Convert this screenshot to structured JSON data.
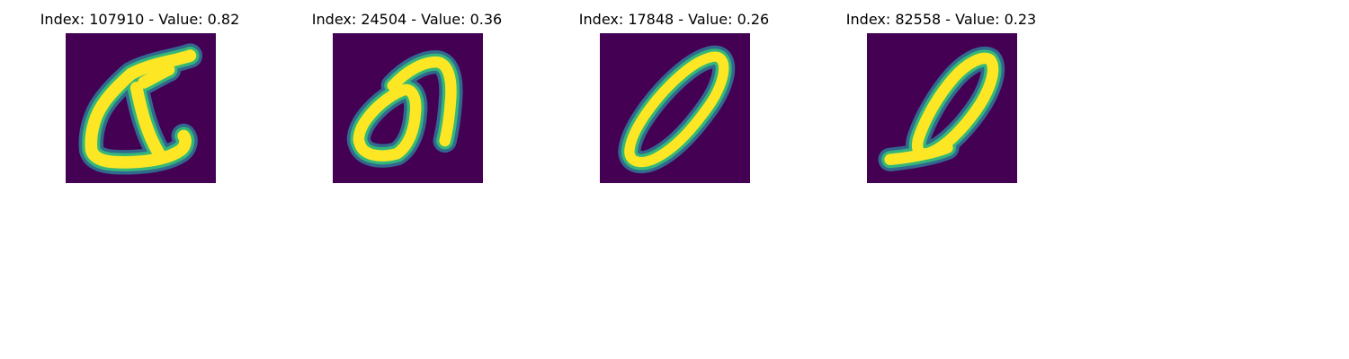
{
  "colors": {
    "background": "#440154",
    "stroke_core": "#fde725",
    "stroke_mid": "#35b779",
    "stroke_edge": "#31688e"
  },
  "panels": [
    {
      "title": "Index: 107910 - Value: 0.82",
      "glyph": "looped-a-shape"
    },
    {
      "title": "Index: 24504 - Value: 0.36",
      "glyph": "looped-m-shape"
    },
    {
      "title": "Index: 17848 - Value: 0.26",
      "glyph": "slanted-zero"
    },
    {
      "title": "Index: 82558 - Value: 0.23",
      "glyph": "slanted-zero-with-tail"
    }
  ]
}
